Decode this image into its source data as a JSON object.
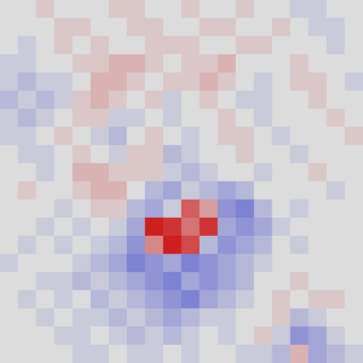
{
  "chart_data": {
    "type": "heatmap",
    "tick_labels": false,
    "zlim": [
      -1,
      1
    ],
    "cells": [
      [
        0,
        0,
        0.1,
        0,
        0,
        0,
        0.1,
        0.1,
        0,
        0,
        0.1,
        0,
        0,
        0.1,
        0,
        0,
        -0.1,
        -0.1,
        0,
        0
      ],
      [
        0,
        0,
        0,
        0.1,
        0.1,
        0,
        0,
        0.1,
        0.1,
        0,
        0,
        0.1,
        0.1,
        0,
        0,
        0.1,
        0,
        -0.1,
        -0.1,
        0
      ],
      [
        0,
        -0.1,
        0,
        0.1,
        0,
        0.1,
        0,
        0,
        0.1,
        0.1,
        0.1,
        0,
        0,
        0.1,
        0.1,
        0,
        0,
        0,
        -0.1,
        0
      ],
      [
        -0.1,
        -0.1,
        0,
        0,
        0.1,
        0.1,
        0.2,
        0.2,
        0.1,
        0,
        0.1,
        0.1,
        0.2,
        0,
        0,
        0,
        0.1,
        0,
        0,
        0
      ],
      [
        -0.1,
        -0.2,
        -0.1,
        -0.1,
        0,
        0.2,
        0.2,
        0.1,
        0,
        0.1,
        0.1,
        0.2,
        0.1,
        0,
        -0.1,
        0,
        0.1,
        0.1,
        0,
        -0.1
      ],
      [
        -0.2,
        -0.1,
        -0.2,
        -0.1,
        0.1,
        0.2,
        0.1,
        0,
        0.1,
        -0.1,
        0,
        0.1,
        0,
        -0.1,
        -0.1,
        0,
        0,
        0.1,
        0,
        0
      ],
      [
        -0.1,
        -0.2,
        -0.1,
        0,
        0.1,
        0.1,
        -0.1,
        -0.1,
        0,
        -0.1,
        0,
        0,
        0.1,
        0,
        -0.1,
        0,
        0,
        0,
        0.1,
        0
      ],
      [
        -0.1,
        -0.1,
        0,
        0.1,
        0,
        -0.1,
        -0.2,
        0,
        0.1,
        0,
        -0.1,
        0,
        0.1,
        0.1,
        0,
        -0.1,
        0,
        0,
        0,
        0.1
      ],
      [
        0,
        -0.1,
        -0.1,
        0,
        0.1,
        0,
        -0.1,
        0.1,
        0.1,
        -0.2,
        -0.1,
        0,
        0,
        0.1,
        0,
        0,
        -0.1,
        0,
        0,
        0
      ],
      [
        0,
        0,
        -0.1,
        0,
        0.2,
        0.2,
        0.1,
        0.1,
        0.1,
        -0.1,
        -0.2,
        -0.1,
        0,
        0,
        -0.1,
        0,
        0,
        0.1,
        0,
        0
      ],
      [
        0,
        0.1,
        0,
        0,
        0.1,
        0.2,
        0.2,
        0,
        -0.2,
        -0.3,
        -0.1,
        -0.2,
        -0.3,
        -0.2,
        0,
        0,
        0,
        0,
        -0.1,
        0
      ],
      [
        0,
        0,
        0,
        -0.1,
        0,
        0.1,
        0.1,
        -0.2,
        -0.3,
        -0.1,
        0.6,
        0.3,
        -0.4,
        -0.5,
        -0.2,
        0,
        -0.1,
        0,
        0,
        0
      ],
      [
        0,
        0,
        -0.1,
        0,
        -0.1,
        0,
        -0.1,
        -0.3,
        0.9,
        0.8,
        0.5,
        0.8,
        -0.3,
        -0.4,
        -0.3,
        -0.1,
        0,
        0,
        0,
        0
      ],
      [
        0,
        -0.1,
        0,
        -0.1,
        0,
        -0.1,
        -0.2,
        -0.4,
        0.4,
        0.9,
        0.7,
        -0.2,
        -0.4,
        -0.3,
        -0.2,
        0,
        -0.1,
        0,
        0,
        0
      ],
      [
        -0.1,
        0,
        0,
        0,
        -0.1,
        -0.2,
        -0.3,
        -0.5,
        -0.4,
        -0.3,
        -0.5,
        -0.4,
        -0.3,
        -0.2,
        -0.1,
        0,
        0,
        0,
        0,
        0
      ],
      [
        0,
        0,
        -0.1,
        -0.1,
        -0.2,
        -0.1,
        -0.2,
        -0.3,
        -0.4,
        -0.5,
        -0.3,
        -0.4,
        -0.3,
        -0.2,
        0,
        0,
        0.1,
        0,
        0,
        0
      ],
      [
        0,
        -0.1,
        0,
        -0.1,
        0,
        -0.2,
        -0.1,
        -0.2,
        -0.3,
        -0.4,
        -0.5,
        -0.3,
        -0.2,
        -0.1,
        0,
        0.1,
        0,
        0.1,
        0.1,
        0
      ],
      [
        0,
        0,
        -0.1,
        0,
        -0.1,
        -0.1,
        -0.2,
        -0.1,
        -0.2,
        -0.3,
        -0.2,
        -0.1,
        -0.1,
        0,
        0,
        0.1,
        -0.2,
        -0.1,
        0,
        0
      ],
      [
        0,
        0,
        0,
        -0.1,
        -0.1,
        0,
        -0.1,
        -0.2,
        -0.1,
        -0.2,
        -0.1,
        0,
        -0.1,
        0,
        0.1,
        -0.1,
        -0.4,
        -0.3,
        -0.1,
        0
      ],
      [
        0,
        0,
        0,
        0,
        -0.1,
        -0.1,
        0,
        -0.1,
        -0.1,
        0,
        -0.1,
        0,
        0,
        -0.1,
        -0.1,
        -0.2,
        0.2,
        -0.3,
        -0.2,
        -0.1
      ]
    ]
  }
}
